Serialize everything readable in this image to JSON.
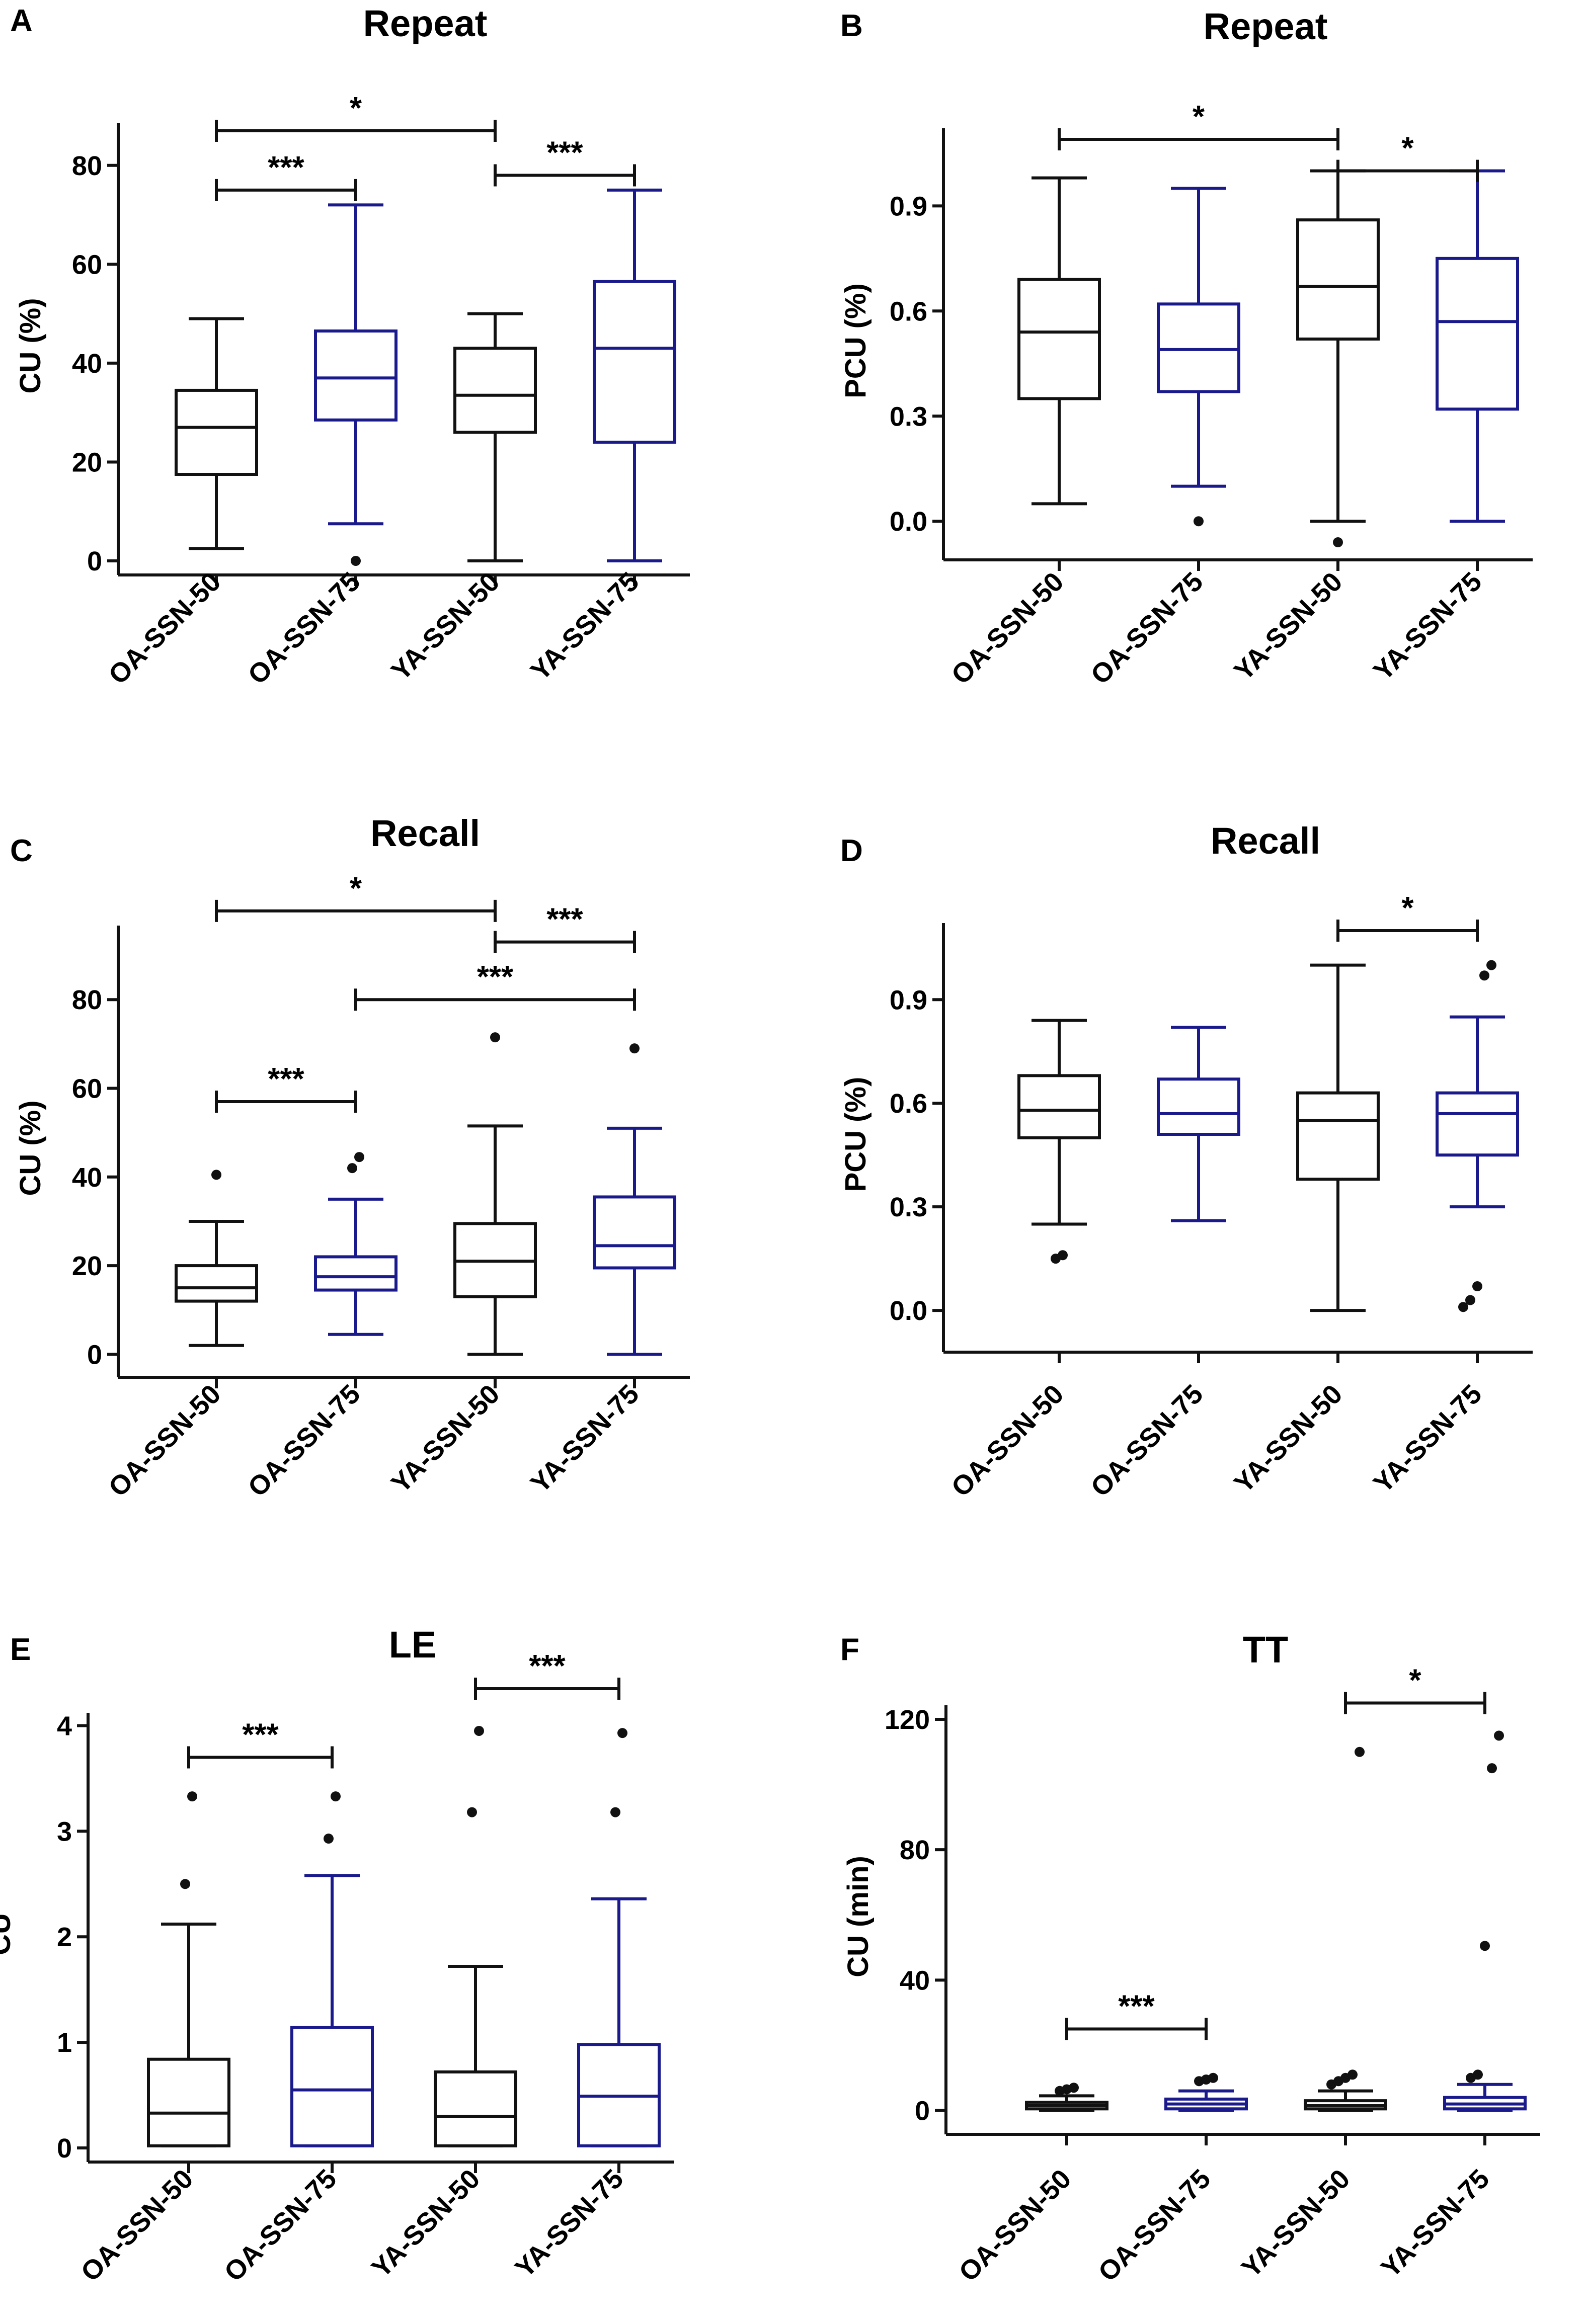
{
  "colors": {
    "black_series": "#111111",
    "blue_series": "#1a1a8c",
    "axis": "#111111"
  },
  "chart_data": [
    {
      "panel": "A",
      "type": "box",
      "title": "Repeat",
      "ylabel": "CU (%)",
      "categories": [
        "OA-SSN-50",
        "OA-SSN-75",
        "YA-SSN-50",
        "YA-SSN-75"
      ],
      "series_colors": [
        "black",
        "blue",
        "black",
        "blue"
      ],
      "ylim": [
        0,
        87
      ],
      "yticks": [
        0,
        20,
        40,
        60,
        80
      ],
      "tick_labels": [
        "0",
        "20",
        "40",
        "60",
        "80"
      ],
      "boxes": [
        {
          "min": 2.5,
          "q1": 17.5,
          "median": 27,
          "q3": 34.5,
          "max": 49,
          "outliers": []
        },
        {
          "min": 7.5,
          "q1": 28.5,
          "median": 37,
          "q3": 46.5,
          "max": 72,
          "outliers": [
            0
          ]
        },
        {
          "min": 0,
          "q1": 26,
          "median": 33.5,
          "q3": 43,
          "max": 50,
          "outliers": []
        },
        {
          "min": 0,
          "q1": 24,
          "median": 43,
          "q3": 56.5,
          "max": 75,
          "outliers": []
        }
      ],
      "brackets": [
        {
          "from": 0,
          "to": 2,
          "y": 87,
          "label": "*"
        },
        {
          "from": 0,
          "to": 1,
          "y": 75,
          "label": "***"
        },
        {
          "from": 2,
          "to": 3,
          "y": 78,
          "label": "***"
        }
      ]
    },
    {
      "panel": "B",
      "type": "box",
      "title": "Repeat",
      "ylabel": "PCU (%)",
      "categories": [
        "OA-SSN-50",
        "OA-SSN-75",
        "YA-SSN-50",
        "YA-SSN-75"
      ],
      "series_colors": [
        "black",
        "blue",
        "black",
        "blue"
      ],
      "ylim": [
        -0.07,
        1.1
      ],
      "yticks": [
        0,
        0.3,
        0.6,
        0.9
      ],
      "tick_labels": [
        "0.0",
        "0.3",
        "0.6",
        "0.9"
      ],
      "boxes": [
        {
          "min": 0.05,
          "q1": 0.35,
          "median": 0.54,
          "q3": 0.69,
          "max": 0.98,
          "outliers": []
        },
        {
          "min": 0.1,
          "q1": 0.37,
          "median": 0.49,
          "q3": 0.62,
          "max": 0.95,
          "outliers": [
            0
          ]
        },
        {
          "min": 0,
          "q1": 0.52,
          "median": 0.67,
          "q3": 0.86,
          "max": 1.0,
          "outliers": [
            -0.06
          ]
        },
        {
          "min": 0,
          "q1": 0.32,
          "median": 0.57,
          "q3": 0.75,
          "max": 1.0,
          "outliers": []
        }
      ],
      "brackets": [
        {
          "from": 0,
          "to": 2,
          "y": 1.09,
          "label": "*"
        },
        {
          "from": 2,
          "to": 3,
          "y": 1.0,
          "label": "*"
        }
      ]
    },
    {
      "panel": "C",
      "type": "box",
      "title": "Recall",
      "ylabel": "CU (%)",
      "categories": [
        "OA-SSN-50",
        "OA-SSN-75",
        "YA-SSN-50",
        "YA-SSN-75"
      ],
      "series_colors": [
        "black",
        "blue",
        "black",
        "blue"
      ],
      "ylim": [
        -2,
        95
      ],
      "yticks": [
        0,
        20,
        40,
        60,
        80
      ],
      "tick_labels": [
        "0",
        "20",
        "40",
        "60",
        "80"
      ],
      "boxes": [
        {
          "min": 2,
          "q1": 12,
          "median": 15,
          "q3": 20,
          "max": 30,
          "outliers": [
            40.5
          ]
        },
        {
          "min": 4.5,
          "q1": 14.5,
          "median": 17.5,
          "q3": 22,
          "max": 35,
          "outliers": [
            42,
            44.5
          ]
        },
        {
          "min": 0,
          "q1": 13,
          "median": 21,
          "q3": 29.5,
          "max": 51.5,
          "outliers": [
            71.5
          ]
        },
        {
          "min": 0,
          "q1": 19.5,
          "median": 24.5,
          "q3": 35.5,
          "max": 51,
          "outliers": [
            69
          ]
        }
      ],
      "brackets": [
        {
          "from": 0,
          "to": 2,
          "y": 100,
          "label": "*"
        },
        {
          "from": 2,
          "to": 3,
          "y": 93,
          "label": "***"
        },
        {
          "from": 1,
          "to": 3,
          "y": 80,
          "label": "***"
        },
        {
          "from": 0,
          "to": 1,
          "y": 57,
          "label": "***"
        }
      ]
    },
    {
      "panel": "D",
      "type": "box",
      "title": "Recall",
      "ylabel": "PCU (%)",
      "categories": [
        "OA-SSN-50",
        "OA-SSN-75",
        "YA-SSN-50",
        "YA-SSN-75"
      ],
      "series_colors": [
        "black",
        "blue",
        "black",
        "blue"
      ],
      "ylim": [
        -0.08,
        1.1
      ],
      "yticks": [
        0,
        0.3,
        0.6,
        0.9
      ],
      "tick_labels": [
        "0.0",
        "0.3",
        "0.6",
        "0.9"
      ],
      "boxes": [
        {
          "min": 0.25,
          "q1": 0.5,
          "median": 0.58,
          "q3": 0.68,
          "max": 0.84,
          "outliers": [
            0.15,
            0.16
          ]
        },
        {
          "min": 0.26,
          "q1": 0.51,
          "median": 0.57,
          "q3": 0.67,
          "max": 0.82,
          "outliers": []
        },
        {
          "min": 0,
          "q1": 0.38,
          "median": 0.55,
          "q3": 0.63,
          "max": 1.0,
          "outliers": []
        },
        {
          "min": 0.3,
          "q1": 0.45,
          "median": 0.57,
          "q3": 0.63,
          "max": 0.85,
          "outliers": [
            0.01,
            0.03,
            0.07,
            0.97,
            1.0
          ]
        }
      ],
      "brackets": [
        {
          "from": 2,
          "to": 3,
          "y": 1.1,
          "label": "*"
        }
      ]
    },
    {
      "panel": "E",
      "type": "box",
      "title": "LE",
      "ylabel": "CU",
      "categories": [
        "OA-SSN-50",
        "OA-SSN-75",
        "YA-SSN-50",
        "YA-SSN-75"
      ],
      "series_colors": [
        "black",
        "blue",
        "black",
        "blue"
      ],
      "ylim": [
        0,
        4.05
      ],
      "yticks": [
        0,
        1,
        2,
        3,
        4
      ],
      "tick_labels": [
        "0",
        "1",
        "2",
        "3",
        "4"
      ],
      "boxes": [
        {
          "min": 0.02,
          "q1": 0.02,
          "median": 0.33,
          "q3": 0.84,
          "max": 2.12,
          "outliers": [
            2.5,
            3.33
          ]
        },
        {
          "min": 0.02,
          "q1": 0.02,
          "median": 0.55,
          "q3": 1.14,
          "max": 2.58,
          "outliers": [
            2.93,
            3.33
          ]
        },
        {
          "min": 0.02,
          "q1": 0.02,
          "median": 0.3,
          "q3": 0.72,
          "max": 1.72,
          "outliers": [
            3.18,
            3.95
          ]
        },
        {
          "min": 0.02,
          "q1": 0.02,
          "median": 0.49,
          "q3": 0.98,
          "max": 2.36,
          "outliers": [
            3.18,
            3.93
          ]
        }
      ],
      "brackets": [
        {
          "from": 0,
          "to": 1,
          "y": 3.7,
          "label": "***"
        },
        {
          "from": 2,
          "to": 3,
          "y": 4.35,
          "label": "***"
        }
      ]
    },
    {
      "panel": "F",
      "type": "box",
      "title": "TT",
      "ylabel": "CU (min)",
      "categories": [
        "OA-SSN-50",
        "OA-SSN-75",
        "YA-SSN-50",
        "YA-SSN-75"
      ],
      "series_colors": [
        "black",
        "blue",
        "black",
        "blue"
      ],
      "ylim": [
        -3,
        122
      ],
      "yticks": [
        0,
        40,
        80,
        120
      ],
      "tick_labels": [
        "0",
        "40",
        "80",
        "120"
      ],
      "boxes": [
        {
          "min": 0,
          "q1": 0.5,
          "median": 1.5,
          "q3": 2.5,
          "max": 4.5,
          "outliers": [
            6,
            6.5,
            7
          ]
        },
        {
          "min": 0,
          "q1": 0.5,
          "median": 2,
          "q3": 3.5,
          "max": 6,
          "outliers": [
            9,
            9.5,
            10
          ]
        },
        {
          "min": 0,
          "q1": 0.5,
          "median": 1.5,
          "q3": 3,
          "max": 6,
          "outliers": [
            8,
            9,
            10,
            11,
            110
          ]
        },
        {
          "min": 0,
          "q1": 0.5,
          "median": 2,
          "q3": 4,
          "max": 8,
          "outliers": [
            10,
            11,
            50.5,
            105,
            115
          ]
        }
      ],
      "brackets": [
        {
          "from": 0,
          "to": 1,
          "y": 25,
          "label": "***"
        },
        {
          "from": 2,
          "to": 3,
          "y": 125,
          "label": "*"
        }
      ]
    }
  ]
}
